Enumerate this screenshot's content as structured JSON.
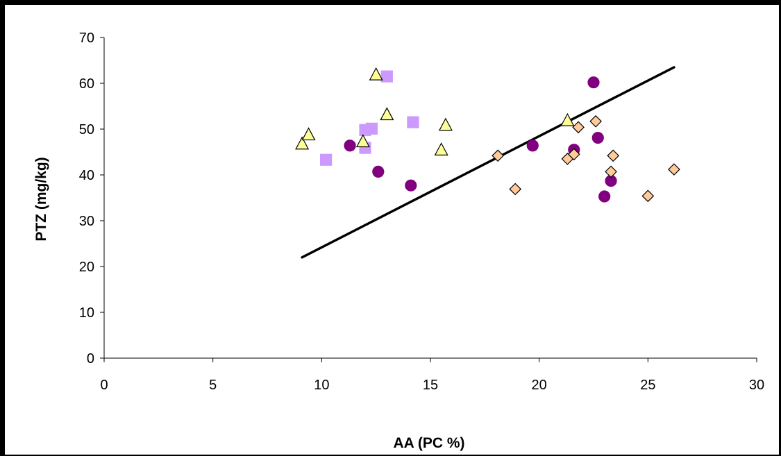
{
  "chart_data": {
    "type": "scatter",
    "title": "",
    "xlabel": "AA (PC %)",
    "ylabel": "PTZ (mg/kg)",
    "xlim": [
      0,
      30
    ],
    "ylim": [
      0,
      70
    ],
    "xticks": [
      0,
      5,
      10,
      15,
      20,
      25,
      30
    ],
    "yticks": [
      0,
      10,
      20,
      30,
      40,
      50,
      60,
      70
    ],
    "grid": false,
    "legend": "none",
    "series": [
      {
        "marker": "circle",
        "color": "#800080",
        "stroke": "#800080",
        "points": [
          [
            11.3,
            46.4
          ],
          [
            12.6,
            40.7
          ],
          [
            14.1,
            37.7
          ],
          [
            19.7,
            46.4
          ],
          [
            21.6,
            45.5
          ],
          [
            22.5,
            60.2
          ],
          [
            22.7,
            48.1
          ],
          [
            23.0,
            35.3
          ],
          [
            23.3,
            38.7
          ]
        ]
      },
      {
        "marker": "square",
        "color": "#CC99FF",
        "stroke": "#CC99FF",
        "points": [
          [
            10.2,
            43.3
          ],
          [
            12.0,
            45.9
          ],
          [
            12.0,
            49.8
          ],
          [
            12.3,
            50.1
          ],
          [
            13.0,
            61.5
          ],
          [
            14.2,
            51.5
          ]
        ]
      },
      {
        "marker": "triangle",
        "color": "#FFFF99",
        "stroke": "#000000",
        "points": [
          [
            9.1,
            46.7
          ],
          [
            9.4,
            48.7
          ],
          [
            11.9,
            47.2
          ],
          [
            12.5,
            61.8
          ],
          [
            13.0,
            53.1
          ],
          [
            15.5,
            45.4
          ],
          [
            15.7,
            50.8
          ],
          [
            21.3,
            51.8
          ]
        ]
      },
      {
        "marker": "diamond",
        "color": "#FFCC99",
        "stroke": "#000000",
        "points": [
          [
            18.1,
            44.2
          ],
          [
            18.9,
            36.9
          ],
          [
            21.3,
            43.5
          ],
          [
            21.6,
            44.5
          ],
          [
            21.8,
            50.4
          ],
          [
            22.6,
            51.7
          ],
          [
            23.3,
            40.7
          ],
          [
            23.4,
            44.2
          ],
          [
            25.0,
            35.4
          ],
          [
            26.2,
            41.2
          ]
        ]
      }
    ],
    "trendline": {
      "color": "#000000",
      "points": [
        [
          9.1,
          22.0
        ],
        [
          26.2,
          63.5
        ]
      ]
    }
  }
}
